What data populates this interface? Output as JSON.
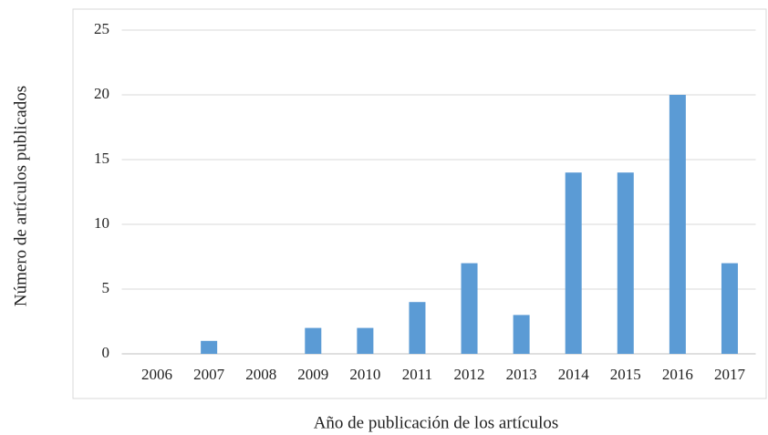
{
  "chart_data": {
    "type": "bar",
    "x_label": "Año de publicación de los artículos",
    "y_label": "Número de artículos publicados",
    "categories": [
      "2006",
      "2007",
      "2008",
      "2009",
      "2010",
      "2011",
      "2012",
      "2013",
      "2014",
      "2015",
      "2016",
      "2017"
    ],
    "values": [
      0,
      1,
      0,
      2,
      2,
      4,
      7,
      3,
      14,
      14,
      20,
      7
    ],
    "color": "#5b9bd5",
    "ylim": [
      0,
      25
    ],
    "yticks": [
      0,
      5,
      10,
      15,
      20,
      25
    ],
    "grid": true
  }
}
